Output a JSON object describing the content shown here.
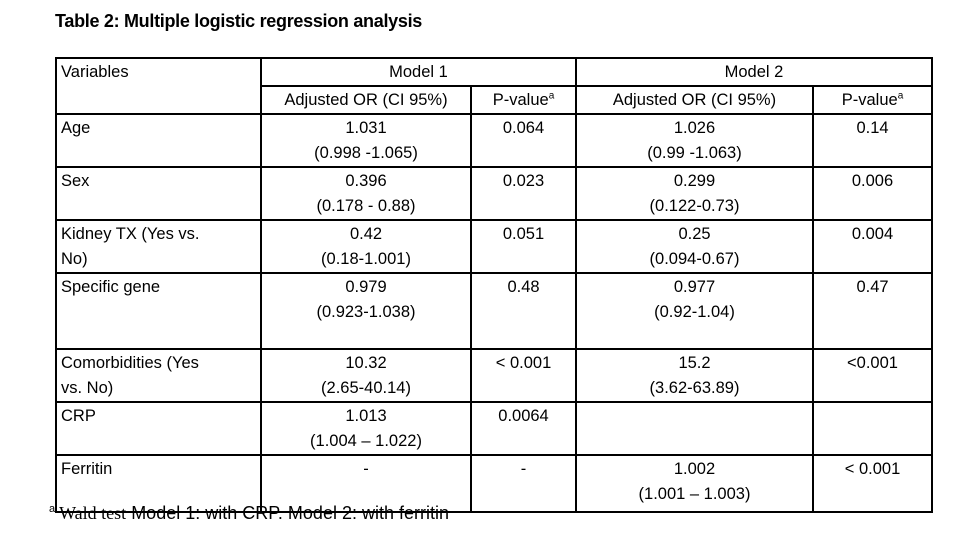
{
  "title": "Table 2: Multiple logistic regression analysis",
  "colors": {
    "text": "#000000",
    "border": "#000000",
    "background": "#ffffff"
  },
  "table": {
    "header": {
      "variables": "Variables",
      "model1": "Model 1",
      "model2": "Model 2",
      "m1_or_label": "Adjusted OR (CI 95%)",
      "m1_pvalue_label": "P-value",
      "m1_pvalue_sup": "a",
      "m2_or_label": "Adjusted OR (CI 95%)",
      "m2_pvalue_label": "P-value",
      "m2_pvalue_sup": "a"
    },
    "rows": [
      {
        "variable": "Age",
        "m1_or": "1.031",
        "m1_ci": "(0.998 -1.065)",
        "m1_p": "0.064",
        "m2_or": "1.026",
        "m2_ci": "(0.99 -1.063)",
        "m2_p": "0.14"
      },
      {
        "variable": "Sex",
        "m1_or": "0.396",
        "m1_ci": "(0.178 - 0.88)",
        "m1_p": "0.023",
        "m2_or": "0.299",
        "m2_ci": "(0.122-0.73)",
        "m2_p": "0.006"
      },
      {
        "variable": "Kidney TX (Yes vs.\nNo)",
        "m1_or": "0.42",
        "m1_ci": "(0.18-1.001)",
        "m1_p": "0.051",
        "m2_or": "0.25",
        "m2_ci": "(0.094-0.67)",
        "m2_p": "0.004"
      },
      {
        "variable": "Specific gene",
        "m1_or": "0.979",
        "m1_ci": "(0.923-1.038)",
        "m1_p": "0.48",
        "m2_or": "0.977",
        "m2_ci": "(0.92-1.04)",
        "m2_p": "0.47"
      },
      {
        "variable": "Comorbidities (Yes\nvs. No)",
        "m1_or": "10.32",
        "m1_ci": "(2.65-40.14)",
        "m1_p": "< 0.001",
        "m2_or": "15.2",
        "m2_ci": "(3.62-63.89)",
        "m2_p": "<0.001"
      },
      {
        "variable": "CRP",
        "m1_or": "1.013",
        "m1_ci": "(1.004 – 1.022)",
        "m1_p": "0.0064",
        "m2_or": "",
        "m2_ci": "",
        "m2_p": ""
      },
      {
        "variable": "Ferritin",
        "m1_or": "-",
        "m1_ci": "",
        "m1_p": "-",
        "m2_or": "1.002",
        "m2_ci": "(1.001 – 1.003)",
        "m2_p": "< 0.001"
      }
    ]
  },
  "footnote": {
    "marker": "a",
    "serif_part": "Wald test",
    "sans_part": "Model 1: with CRP. Model 2: with ferritin"
  }
}
